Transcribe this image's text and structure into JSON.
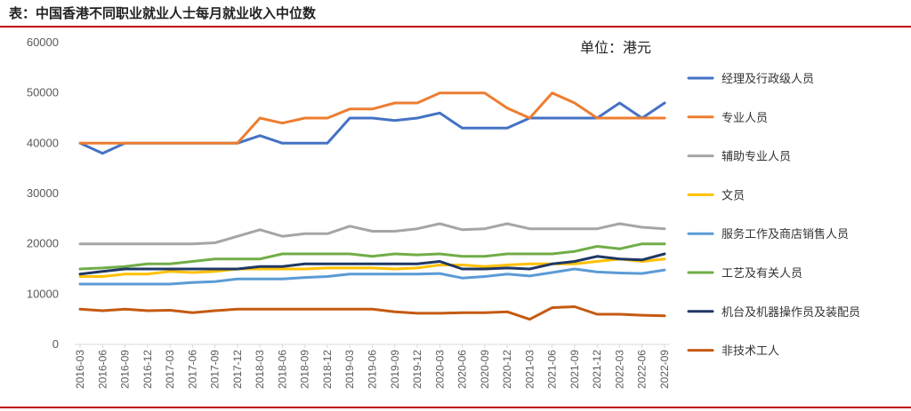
{
  "title": "表：中国香港不同职业就业人士每月就业收入中位数",
  "unit": "单位：港元",
  "colors": {
    "accent_rule": "#c00000"
  },
  "chart_data": {
    "type": "line",
    "ylim": [
      0,
      60000
    ],
    "yticks": [
      "60000",
      "50000",
      "40000",
      "30000",
      "20000",
      "10000",
      "0"
    ],
    "grid": false,
    "legend_position": "right",
    "x": [
      "2016-03",
      "2016-06",
      "2016-09",
      "2016-12",
      "2017-03",
      "2017-06",
      "2017-09",
      "2017-12",
      "2018-03",
      "2018-06",
      "2018-09",
      "2018-12",
      "2019-03",
      "2019-06",
      "2019-09",
      "2019-12",
      "2020-03",
      "2020-06",
      "2020-09",
      "2020-12",
      "2021-03",
      "2021-06",
      "2021-09",
      "2021-12",
      "2022-03",
      "2022-06",
      "2022-09"
    ],
    "series": [
      {
        "name": "经理及行政级人员",
        "color": "#4472c4",
        "values": [
          40000,
          38000,
          40000,
          40000,
          40000,
          40000,
          40000,
          40000,
          41500,
          40000,
          40000,
          40000,
          45000,
          45000,
          44500,
          45000,
          46000,
          43000,
          43000,
          43000,
          45000,
          45000,
          45000,
          45000,
          48000,
          45000,
          48000
        ]
      },
      {
        "name": "专业人员",
        "color": "#ed7d31",
        "values": [
          40000,
          40000,
          40000,
          40000,
          40000,
          40000,
          40000,
          40000,
          45000,
          44000,
          45000,
          45000,
          46800,
          46800,
          48000,
          48000,
          50000,
          50000,
          50000,
          47000,
          45000,
          50000,
          48000,
          45000,
          45000,
          45000,
          45000
        ]
      },
      {
        "name": "辅助专业人员",
        "color": "#a5a5a5",
        "values": [
          20000,
          20000,
          20000,
          20000,
          20000,
          20000,
          20200,
          21500,
          22800,
          21500,
          22000,
          22000,
          23500,
          22500,
          22500,
          23000,
          24000,
          22800,
          23000,
          24000,
          23000,
          23000,
          23000,
          23000,
          24000,
          23300,
          23000
        ]
      },
      {
        "name": "文员",
        "color": "#ffc000",
        "values": [
          13500,
          13500,
          14000,
          14000,
          14500,
          14300,
          14500,
          15000,
          15000,
          15000,
          15000,
          15200,
          15200,
          15200,
          15000,
          15200,
          15800,
          15800,
          15500,
          15800,
          16000,
          16000,
          16000,
          16500,
          17000,
          16500,
          17000
        ]
      },
      {
        "name": "服务工作及商店销售人员",
        "color": "#5b9bd5",
        "values": [
          12000,
          12000,
          12000,
          12000,
          12000,
          12300,
          12500,
          13000,
          13000,
          13000,
          13300,
          13500,
          14000,
          14000,
          14000,
          14000,
          14100,
          13200,
          13500,
          14000,
          13600,
          14300,
          15000,
          14400,
          14200,
          14100,
          14800
        ]
      },
      {
        "name": "工艺及有关人员",
        "color": "#70ad47",
        "values": [
          15000,
          15200,
          15500,
          16000,
          16000,
          16500,
          17000,
          17000,
          17000,
          18000,
          18000,
          18000,
          18000,
          17500,
          18000,
          17800,
          18000,
          17500,
          17500,
          18000,
          18000,
          18000,
          18500,
          19500,
          19000,
          20000,
          20000
        ]
      },
      {
        "name": "机台及机器操作员及装配员",
        "color": "#1f3864",
        "values": [
          14000,
          14500,
          15000,
          15000,
          15000,
          15000,
          15000,
          15000,
          15500,
          15500,
          16000,
          16000,
          16000,
          16000,
          16000,
          16000,
          16500,
          15000,
          15000,
          15200,
          15000,
          16000,
          16500,
          17500,
          17000,
          16800,
          18000
        ]
      },
      {
        "name": "非技术工人",
        "color": "#c55a11",
        "values": [
          7000,
          6700,
          7000,
          6700,
          6800,
          6300,
          6700,
          7000,
          7000,
          7000,
          7000,
          7000,
          7000,
          7000,
          6500,
          6200,
          6200,
          6300,
          6300,
          6500,
          5000,
          7300,
          7500,
          6000,
          6000,
          5800,
          5700
        ]
      }
    ]
  }
}
